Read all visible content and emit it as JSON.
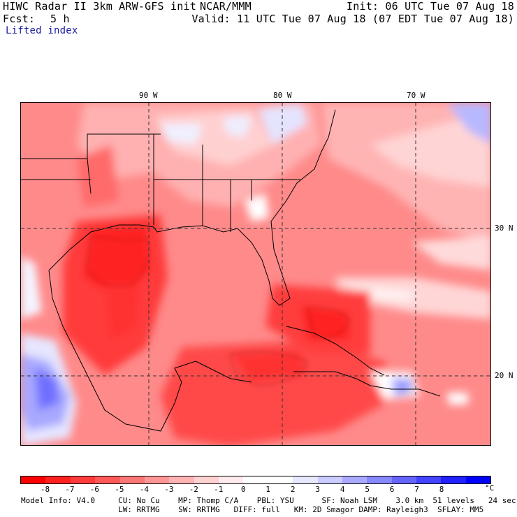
{
  "header": {
    "title": "HIWC Radar II 3km ARW-GFS init",
    "org": "NCAR/MMM",
    "init": "Init: 06 UTC Tue 07 Aug 18",
    "fcst_label": "Fcst:",
    "fcst_value": "5 h",
    "valid": "Valid: 11 UTC Tue 07 Aug 18 (07 EDT Tue 07 Aug 18)",
    "field": "Lifted index"
  },
  "axes": {
    "lon_labels": [
      "90 W",
      "80 W",
      "70 W"
    ],
    "lat_labels": [
      "30 N",
      "20 N"
    ]
  },
  "colorbar": {
    "colors": [
      "#ff0000",
      "#ff2020",
      "#ff3c3c",
      "#ff5a5a",
      "#ff7878",
      "#ff9696",
      "#ffb4b4",
      "#ffd2d2",
      "#ffebeb",
      "#ffffff",
      "#ffffff",
      "#e8e8ff",
      "#ccccff",
      "#aaaaff",
      "#8888ff",
      "#6666ff",
      "#4444ff",
      "#2222ff",
      "#0000ff"
    ],
    "ticks": [
      "-8",
      "-7",
      "-6",
      "-5",
      "-4",
      "-3",
      "-2",
      "-1",
      "0",
      "1",
      "2",
      "3",
      "4",
      "5",
      "6",
      "7",
      "8"
    ],
    "unit": "°C"
  },
  "footer": {
    "line1": "Model Info: V4.0     CU: No Cu    MP: Thomp C/A    PBL: YSU      SF: Noah LSM    3.0 km  51 levels   24 sec",
    "line2": "                     LW: RRTMG    SW: RRTMG   DIFF: full   KM: 2D Smagor DAMP: Rayleigh3  SFLAY: MM5"
  },
  "map_data": {
    "field": "lifted index",
    "grid_lines": {
      "longitude": [
        90,
        80,
        70
      ],
      "latitude": [
        30,
        20
      ]
    },
    "notable_regions": [
      {
        "region": "western Gulf of Mexico",
        "value_range": "-6 to -7"
      },
      {
        "region": "north of Cuba / Bahamas",
        "value_range": "-6 to -7"
      },
      {
        "region": "Sierra Madre Mexico",
        "value_range": "2 to 5"
      },
      {
        "region": "Atlantic far northeast",
        "value_range": "2 to 3"
      }
    ]
  }
}
